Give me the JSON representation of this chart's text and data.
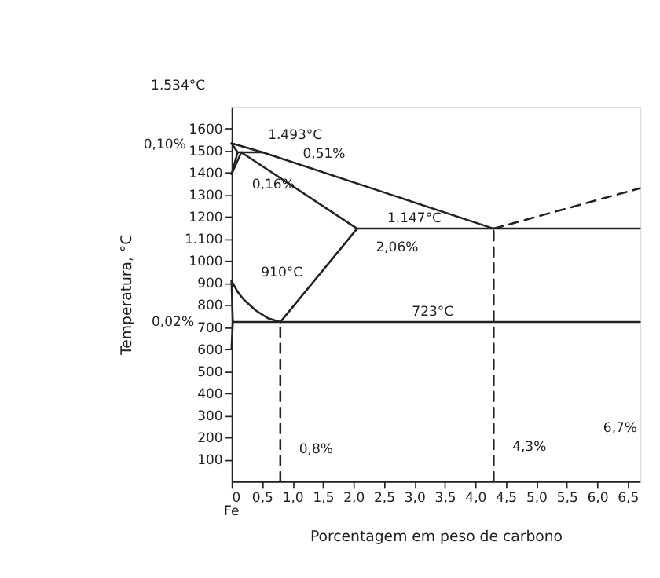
{
  "chart_data": {
    "type": "line",
    "xlabel": "Porcentagem em peso de carbono",
    "ylabel": "Temperatura, °C",
    "xlim": [
      0,
      6.7
    ],
    "ylim": [
      0,
      1700
    ],
    "xticks": [
      0,
      {
        "value": 0.5,
        "label": "0,5"
      },
      {
        "value": 1.0,
        "label": "1,0"
      },
      {
        "value": 1.5,
        "label": "1,5"
      },
      {
        "value": 2.0,
        "label": "2,0"
      },
      {
        "value": 2.5,
        "label": "2,5"
      },
      {
        "value": 3.0,
        "label": "3,0"
      },
      {
        "value": 3.5,
        "label": "3,5"
      },
      {
        "value": 4.0,
        "label": "4,0"
      },
      {
        "value": 4.5,
        "label": "4,5"
      },
      {
        "value": 5.0,
        "label": "5,0"
      },
      {
        "value": 5.5,
        "label": "5,5"
      },
      {
        "value": 6.0,
        "label": "6,0"
      },
      {
        "value": 6.5,
        "label": "6,5"
      }
    ],
    "yticks": [
      100,
      200,
      300,
      400,
      500,
      600,
      700,
      800,
      900,
      1000,
      {
        "value": 1100,
        "label": "1.100"
      },
      1200,
      1300,
      1400,
      1500,
      1600
    ],
    "grid": false,
    "marker": "none",
    "series": [
      {
        "color": "#222222",
        "line_style": "solid",
        "x": [
          0,
          0.51,
          4.3
        ],
        "values": [
          1534,
          1493,
          1147
        ]
      },
      {
        "color": "#222222",
        "line_style": "dashed",
        "x": [
          4.3,
          6.7
        ],
        "values": [
          1147,
          1330
        ]
      },
      {
        "color": "#222222",
        "line_style": "solid",
        "x": [
          0.1,
          0.51
        ],
        "values": [
          1493,
          1493
        ]
      },
      {
        "color": "#222222",
        "line_style": "solid",
        "x": [
          0,
          0.1
        ],
        "values": [
          1534,
          1493
        ]
      },
      {
        "color": "#222222",
        "line_style": "solid",
        "x": [
          0,
          0.1
        ],
        "values": [
          1394,
          1493
        ]
      },
      {
        "color": "#222222",
        "line_style": "solid",
        "x": [
          0,
          0.16
        ],
        "values": [
          1394,
          1493
        ]
      },
      {
        "color": "#222222",
        "line_style": "solid",
        "x": [
          0.16,
          2.06
        ],
        "values": [
          1493,
          1147
        ]
      },
      {
        "color": "#222222",
        "line_style": "solid",
        "x": [
          2.06,
          6.7
        ],
        "values": [
          1147,
          1147
        ]
      },
      {
        "color": "#222222",
        "line_style": "solid",
        "x": [
          0,
          0.1,
          0.2,
          0.4,
          0.6,
          0.8
        ],
        "values": [
          910,
          860,
          825,
          775,
          740,
          723
        ]
      },
      {
        "color": "#222222",
        "line_style": "solid",
        "x": [
          0.8,
          2.06
        ],
        "values": [
          723,
          1147
        ]
      },
      {
        "color": "#222222",
        "line_style": "solid",
        "x": [
          0.02,
          6.7
        ],
        "values": [
          723,
          723
        ]
      },
      {
        "color": "#222222",
        "line_style": "solid",
        "x": [
          0,
          0.02,
          0
        ],
        "values": [
          910,
          723,
          600
        ]
      },
      {
        "color": "#222222",
        "line_style": "dashed",
        "x": [
          0.8,
          0.8
        ],
        "values": [
          0,
          723
        ]
      },
      {
        "color": "#222222",
        "line_style": "dashed",
        "x": [
          4.3,
          4.3
        ],
        "values": [
          0,
          1147
        ]
      }
    ],
    "annotations": [
      "1.534°C",
      {
        "text": "1.493°C",
        "x": 0.51,
        "y": 1493
      },
      "0,10%",
      {
        "text": "0,51%",
        "x": 0.51,
        "y": 1493
      },
      {
        "text": "0,16%",
        "x": 0.16,
        "y": 1493
      },
      {
        "text": "1.147°C",
        "x": 3.0,
        "y": 1147
      },
      {
        "text": "2,06%",
        "x": 2.06,
        "y": 1147
      },
      {
        "text": "910°C",
        "x": 0,
        "y": 910
      },
      "0,02%",
      {
        "text": "723°C",
        "x": 3.3,
        "y": 723
      },
      {
        "text": "0,8%",
        "x": 0.8,
        "y": 0
      },
      {
        "text": "4,3%",
        "x": 4.3,
        "y": 0
      },
      "6,7%",
      "Fe"
    ]
  }
}
